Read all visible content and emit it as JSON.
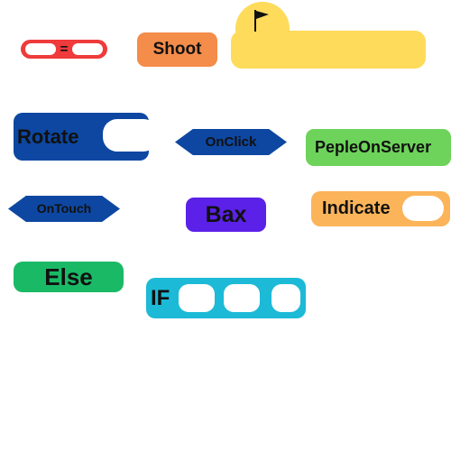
{
  "blocks": {
    "equals": {
      "operator": "=",
      "color": "#ef3b3b"
    },
    "shoot": {
      "label": "Shoot",
      "color": "#f48c4a"
    },
    "when_flag": {
      "icon": "flag-icon",
      "color": "#fedb5a"
    },
    "rotate": {
      "label": "Rotate",
      "color": "#0d47a1"
    },
    "onclick": {
      "label": "OnClick",
      "color": "#0d47a1"
    },
    "peple_on_server": {
      "label": "PepleOnServer",
      "color": "#6dd35a"
    },
    "ontouch": {
      "label": "OnTouch",
      "color": "#0d47a1"
    },
    "bax": {
      "label": "Bax",
      "color": "#5b21e8"
    },
    "indicate": {
      "label": "Indicate",
      "color": "#fbb45a"
    },
    "else": {
      "label": "Else",
      "color": "#1ab966"
    },
    "if": {
      "label": "IF",
      "color": "#1cbad6"
    }
  }
}
